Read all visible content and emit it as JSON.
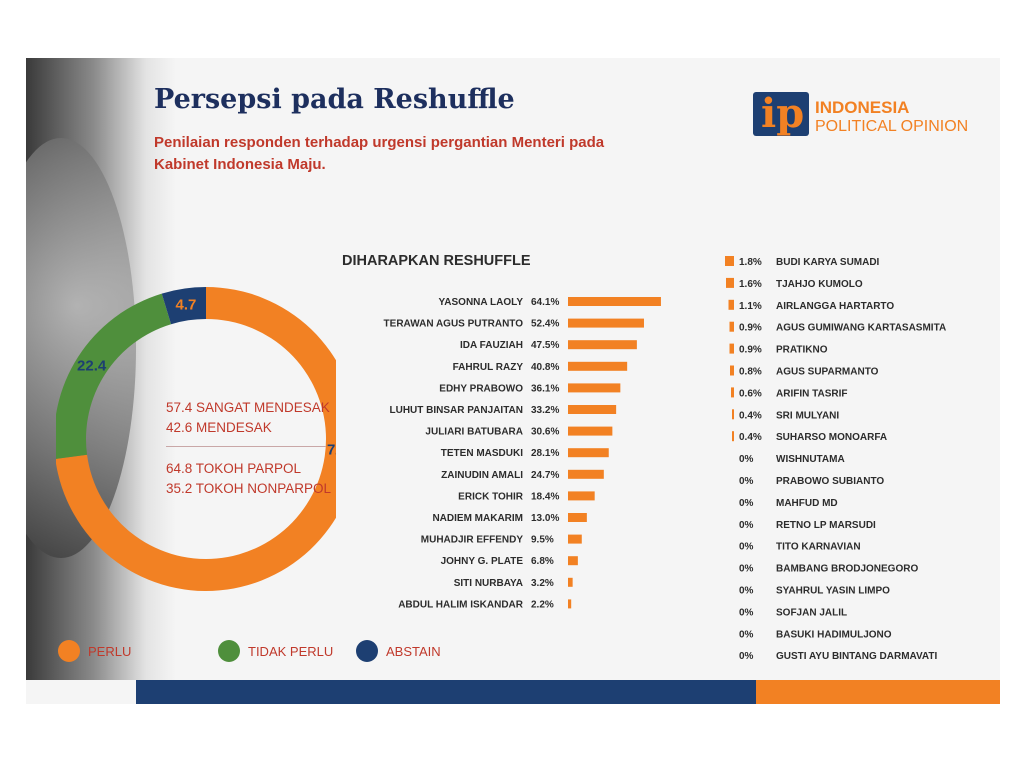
{
  "header": {
    "title": "Persepsi pada Reshuffle",
    "subtitle": "Penilaian responden terhadap urgensi pergantian Menteri pada Kabinet Indonesia Maju."
  },
  "logo": {
    "mark": "ip",
    "name_line1": "INDONESIA",
    "name_line2": "POLITICAL OPINION"
  },
  "colors": {
    "orange": "#f28123",
    "green": "#4f8f3c",
    "navy": "#1d3f72",
    "red_text": "#c0392b"
  },
  "donut_notes": {
    "line1": "57.4 SANGAT MENDESAK",
    "line2": "42.6 MENDESAK",
    "line3": "64.8 TOKOH PARPOL",
    "line4": "35.2 TOKOH NONPARPOL"
  },
  "legend": [
    {
      "label": "PERLU",
      "color": "#f28123"
    },
    {
      "label": "TIDAK PERLU",
      "color": "#4f8f3c"
    },
    {
      "label": "ABSTAIN",
      "color": "#1d3f72"
    }
  ],
  "chart_data": [
    {
      "type": "pie",
      "slices": [
        {
          "label": "PERLU",
          "value": 72.9,
          "display": "72.9",
          "color": "#f28123"
        },
        {
          "label": "TIDAK PERLU",
          "value": 22.4,
          "display": "22.4",
          "color": "#4f8f3c"
        },
        {
          "label": "ABSTAIN",
          "value": 4.7,
          "display": "4.7",
          "color": "#1d3f72"
        }
      ]
    },
    {
      "type": "bar",
      "title": "DIHARAPKAN RESHUFFLE",
      "categories": [
        "YASONNA LAOLY",
        "TERAWAN AGUS PUTRANTO",
        "IDA FAUZIAH",
        "FAHRUL RAZY",
        "EDHY PRABOWO",
        "LUHUT BINSAR PANJAITAN",
        "JULIARI BATUBARA",
        "TETEN MASDUKI",
        "ZAINUDIN AMALI",
        "ERICK TOHIR",
        "NADIEM MAKARIM",
        "MUHADJIR EFFENDY",
        "JOHNY G. PLATE",
        "SITI NURBAYA",
        "ABDUL HALIM ISKANDAR"
      ],
      "values": [
        64.1,
        52.4,
        47.5,
        40.8,
        36.1,
        33.2,
        30.6,
        28.1,
        24.7,
        18.4,
        13.0,
        9.5,
        6.8,
        3.2,
        2.2
      ],
      "value_labels": [
        "64.1%",
        "52.4%",
        "47.5%",
        "40.8%",
        "36.1%",
        "33.2%",
        "30.6%",
        "28.1%",
        "24.7%",
        "18.4%",
        "13.0%",
        "9.5%",
        "6.8%",
        "3.2%",
        "2.2%"
      ]
    },
    {
      "type": "bar",
      "categories": [
        "BUDI KARYA SUMADI",
        "TJAHJO KUMOLO",
        "AIRLANGGA HARTARTO",
        "AGUS GUMIWANG KARTASASMITA",
        "PRATIKNO",
        "AGUS SUPARMANTO",
        "ARIFIN TASRIF",
        "SRI MULYANI",
        "SUHARSO MONOARFA",
        "WISHNUTAMA",
        "PRABOWO SUBIANTO",
        "MAHFUD MD",
        "RETNO LP MARSUDI",
        "TITO KARNAVIAN",
        "BAMBANG BRODJONEGORO",
        "SYAHRUL YASIN LIMPO",
        "SOFJAN JALIL",
        "BASUKI HADIMULJONO",
        "GUSTI AYU BINTANG DARMAVATI"
      ],
      "values": [
        1.8,
        1.6,
        1.1,
        0.9,
        0.9,
        0.8,
        0.6,
        0.4,
        0.4,
        0,
        0,
        0,
        0,
        0,
        0,
        0,
        0,
        0,
        0
      ],
      "value_labels": [
        "1.8%",
        "1.6%",
        "1.1%",
        "0.9%",
        "0.9%",
        "0.8%",
        "0.6%",
        "0.4%",
        "0.4%",
        "0%",
        "0%",
        "0%",
        "0%",
        "0%",
        "0%",
        "0%",
        "0%",
        "0%",
        "0%"
      ]
    }
  ]
}
